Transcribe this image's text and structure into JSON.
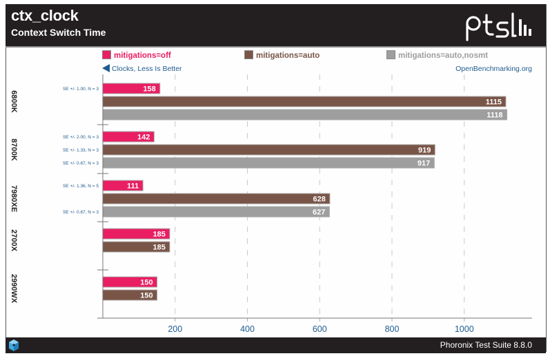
{
  "header": {
    "title": "ctx_clock",
    "subtitle": "Context Switch Time",
    "logo": "pts-logo"
  },
  "hint": {
    "icon": "left-arrow-icon",
    "text": "Clocks, Less Is Better"
  },
  "source": "OpenBenchmarking.org",
  "footer": {
    "icon": "phoronix-cube-icon",
    "text": "Phoronix Test Suite 8.8.0"
  },
  "colors": {
    "mitigations_off": "#e91e63",
    "mitigations_auto": "#795548",
    "mitigations_auto_nosmt": "#9e9e9e",
    "axis_text": "#1f5b8e",
    "header_bg": "#231f20"
  },
  "chart_data": {
    "type": "bar",
    "orientation": "horizontal",
    "title": "ctx_clock",
    "subtitle": "Context Switch Time",
    "xlabel": "Clocks, Less Is Better",
    "ylabel": "",
    "xlim": [
      0,
      1180
    ],
    "xticks": [
      200,
      400,
      600,
      800,
      1000
    ],
    "grid": true,
    "legend_position": "top",
    "categories": [
      "6800K",
      "8700K",
      "7980XE",
      "2700X",
      "2990WX"
    ],
    "series": [
      {
        "name": "mitigations=off",
        "color": "#e91e63",
        "values": [
          158,
          142,
          111,
          185,
          150
        ],
        "errors": [
          "SE +/- 1.00, N = 3",
          "SE +/- 2.00, N = 3",
          "SE +/- 1.36, N = 5",
          "",
          ""
        ]
      },
      {
        "name": "mitigations=auto",
        "color": "#795548",
        "values": [
          1115,
          919,
          628,
          185,
          150
        ],
        "errors": [
          "",
          "SE +/- 1.33, N = 3",
          "",
          "",
          ""
        ]
      },
      {
        "name": "mitigations=auto,nosmt",
        "color": "#9e9e9e",
        "values": [
          1118,
          917,
          627,
          null,
          null
        ],
        "errors": [
          "",
          "SE +/- 0.67, N = 3",
          "SE +/- 0.67, N = 3",
          "",
          ""
        ]
      }
    ]
  }
}
